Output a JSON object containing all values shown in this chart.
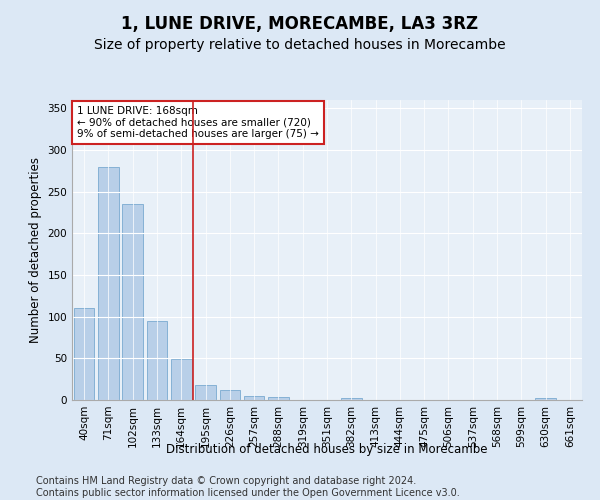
{
  "title": "1, LUNE DRIVE, MORECAMBE, LA3 3RZ",
  "subtitle": "Size of property relative to detached houses in Morecambe",
  "xlabel": "Distribution of detached houses by size in Morecambe",
  "ylabel": "Number of detached properties",
  "categories": [
    "40sqm",
    "71sqm",
    "102sqm",
    "133sqm",
    "164sqm",
    "195sqm",
    "226sqm",
    "257sqm",
    "288sqm",
    "319sqm",
    "351sqm",
    "382sqm",
    "413sqm",
    "444sqm",
    "475sqm",
    "506sqm",
    "537sqm",
    "568sqm",
    "599sqm",
    "630sqm",
    "661sqm"
  ],
  "values": [
    111,
    280,
    235,
    95,
    49,
    18,
    12,
    5,
    4,
    0,
    0,
    3,
    0,
    0,
    0,
    0,
    0,
    0,
    0,
    3,
    0
  ],
  "bar_color": "#b8cfe8",
  "bar_edge_color": "#7aaad0",
  "vline_x_index": 4,
  "vline_color": "#cc2222",
  "annotation_text": "1 LUNE DRIVE: 168sqm\n← 90% of detached houses are smaller (720)\n9% of semi-detached houses are larger (75) →",
  "annotation_box_color": "#ffffff",
  "annotation_box_edge": "#cc2222",
  "ylim": [
    0,
    360
  ],
  "yticks": [
    0,
    50,
    100,
    150,
    200,
    250,
    300,
    350
  ],
  "footer": "Contains HM Land Registry data © Crown copyright and database right 2024.\nContains public sector information licensed under the Open Government Licence v3.0.",
  "bg_color": "#dce8f5",
  "plot_bg_color": "#e8f0f8",
  "grid_color": "#ffffff",
  "title_fontsize": 12,
  "subtitle_fontsize": 10,
  "axis_label_fontsize": 8.5,
  "tick_fontsize": 7.5,
  "footer_fontsize": 7
}
